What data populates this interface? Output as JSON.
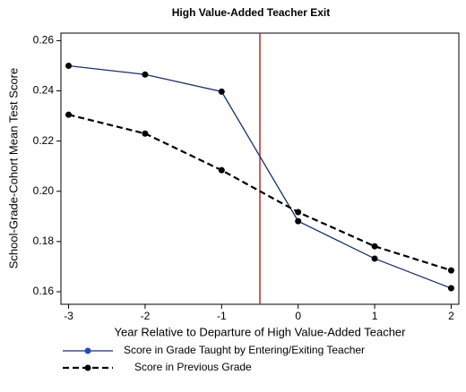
{
  "chart_data": {
    "type": "line",
    "title": "High Value-Added Teacher Exit",
    "xlabel": "Year Relative to Departure of High Value-Added Teacher",
    "ylabel": "School-Grade-Cohort Mean Test Score",
    "x": [
      -3,
      -2,
      -1,
      0,
      1,
      2
    ],
    "series": [
      {
        "name": "Score in Grade Taught by Entering/Exiting Teacher",
        "color": "#1a2f6b",
        "marker_color": "#1f4fbf",
        "dash": false,
        "values": [
          0.25,
          0.2465,
          0.2397,
          0.1881,
          0.1732,
          0.1614
        ]
      },
      {
        "name": "Score in Previous Grade",
        "color": "#000000",
        "marker_color": "#000000",
        "dash": true,
        "values": [
          0.2305,
          0.223,
          0.2084,
          0.1917,
          0.1781,
          0.1685
        ]
      }
    ],
    "vline": -0.5,
    "vline_color": "#c0282d",
    "xlim": [
      -3.1,
      2.1
    ],
    "ylim": [
      0.155,
      0.263
    ],
    "xticks": [
      -3,
      -2,
      -1,
      0,
      1,
      2
    ],
    "yticks": [
      0.16,
      0.18,
      {
        "value": 0.2,
        "label": "0.20"
      },
      0.22,
      0.24,
      0.26
    ],
    "grid": false
  }
}
